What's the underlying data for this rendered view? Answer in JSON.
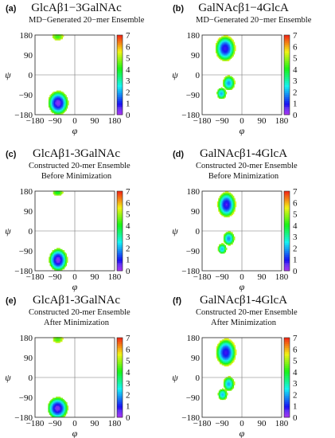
{
  "panels": [
    {
      "letter": "(a)",
      "title": "GlcAβ1−3GalNAc",
      "subtitle": [
        "MD−Generated 20−mer Ensemble"
      ]
    },
    {
      "letter": "(b)",
      "title": "GalNAcβ1−4GlcA",
      "subtitle": [
        "MD−Generated 20−mer Ensemble"
      ]
    },
    {
      "letter": "(c)",
      "title": "GlcAβ1-3GalNAc",
      "subtitle": [
        "Constructed 20-mer Ensemble",
        "Before Minimization"
      ]
    },
    {
      "letter": "(d)",
      "title": "GalNAcβ1-4GlcA",
      "subtitle": [
        "Constructed 20-mer Ensemble",
        "Before Minimization"
      ]
    },
    {
      "letter": "(e)",
      "title": "GlcAβ1-3GalNAc",
      "subtitle": [
        "Constructed 20-mer Ensemble",
        "After Minimization"
      ]
    },
    {
      "letter": "(f)",
      "title": "GalNAcβ1-4GlcA",
      "subtitle": [
        "Constructed 20-mer Ensemble",
        "After Minimization"
      ]
    }
  ],
  "chart_data": [
    {
      "type": "heatmap",
      "title": "GlcAβ1−3GalNAc",
      "xlabel": "φ",
      "ylabel": "ψ",
      "xlim": [
        -180,
        180
      ],
      "ylim": [
        -180,
        180
      ],
      "x_ticks": [
        "−180",
        "−90",
        "0",
        "90",
        "180"
      ],
      "y_ticks": [
        "−180",
        "−90",
        "0",
        "90",
        "180"
      ],
      "colorbar": {
        "min": 0,
        "max": 7,
        "ticks": [
          "0",
          "1",
          "2",
          "3",
          "4",
          "5",
          "6",
          "7"
        ]
      },
      "clusters": [
        {
          "phi": -78,
          "psi": -128,
          "sphi": 22,
          "spsi": 26,
          "peak": 0.3
        },
        {
          "phi": -80,
          "psi": 172,
          "sphi": 12,
          "spsi": 8,
          "peak": 4.0
        }
      ]
    },
    {
      "type": "heatmap",
      "title": "GalNAcβ1−4GlcA",
      "xlabel": "φ",
      "ylabel": "ψ",
      "xlim": [
        -180,
        180
      ],
      "ylim": [
        -180,
        180
      ],
      "x_ticks": [
        "−180",
        "−90",
        "0",
        "90",
        "180"
      ],
      "y_ticks": [
        "−180",
        "−90",
        "0",
        "90",
        "180"
      ],
      "colorbar": {
        "min": 0,
        "max": 7,
        "ticks": [
          "0",
          "1",
          "2",
          "3",
          "4",
          "5",
          "6",
          "7"
        ]
      },
      "clusters": [
        {
          "phi": -78,
          "psi": 118,
          "sphi": 22,
          "spsi": 28,
          "peak": 0.3
        },
        {
          "phi": -62,
          "psi": -38,
          "sphi": 13,
          "spsi": 16,
          "peak": 1.8
        },
        {
          "phi": -95,
          "psi": -85,
          "sphi": 10,
          "spsi": 12,
          "peak": 2.2
        }
      ]
    },
    {
      "type": "heatmap",
      "title": "GlcAβ1-3GalNAc",
      "xlabel": "φ",
      "ylabel": "ψ",
      "xlim": [
        -180,
        180
      ],
      "ylim": [
        -180,
        180
      ],
      "x_ticks": [
        "−180",
        "−90",
        "0",
        "90",
        "180"
      ],
      "y_ticks": [
        "180",
        "90",
        "0",
        "−90",
        "−180"
      ],
      "colorbar": {
        "min": 0,
        "max": 7,
        "ticks": [
          "0",
          "1",
          "2",
          "3",
          "4",
          "5",
          "6",
          "7"
        ]
      },
      "clusters": [
        {
          "phi": -78,
          "psi": -132,
          "sphi": 20,
          "spsi": 25,
          "peak": 0.4
        },
        {
          "phi": -80,
          "psi": 173,
          "sphi": 11,
          "spsi": 7,
          "peak": 3.8
        }
      ]
    },
    {
      "type": "heatmap",
      "title": "GalNAcβ1-4GlcA",
      "xlabel": "φ",
      "ylabel": "ψ",
      "xlim": [
        -180,
        180
      ],
      "ylim": [
        -180,
        180
      ],
      "x_ticks": [
        "−180",
        "−90",
        "0",
        "90",
        "180"
      ],
      "y_ticks": [
        "180",
        "90",
        "0",
        "−90",
        "−180"
      ],
      "colorbar": {
        "min": 0,
        "max": 7,
        "ticks": [
          "0",
          "1",
          "2",
          "3",
          "4",
          "5",
          "6",
          "7"
        ]
      },
      "clusters": [
        {
          "phi": -72,
          "psi": 118,
          "sphi": 20,
          "spsi": 28,
          "peak": 0.3
        },
        {
          "phi": -62,
          "psi": -35,
          "sphi": 12,
          "spsi": 15,
          "peak": 1.8
        },
        {
          "phi": -92,
          "psi": -82,
          "sphi": 9,
          "spsi": 11,
          "peak": 2.3
        }
      ]
    },
    {
      "type": "heatmap",
      "title": "GlcAβ1-3GalNAc",
      "xlabel": "φ",
      "ylabel": "ψ",
      "xlim": [
        -180,
        180
      ],
      "ylim": [
        -180,
        180
      ],
      "x_ticks": [
        "−180",
        "−90",
        "0",
        "90",
        "180"
      ],
      "y_ticks": [
        "180",
        "90",
        "0",
        "−90",
        "−180"
      ],
      "colorbar": {
        "min": 0,
        "max": 7,
        "ticks": [
          "0",
          "1",
          "2",
          "3",
          "4",
          "5",
          "6",
          "7"
        ]
      },
      "clusters": [
        {
          "phi": -80,
          "psi": -140,
          "sphi": 22,
          "spsi": 24,
          "peak": 0.5
        },
        {
          "phi": -80,
          "psi": 172,
          "sphi": 11,
          "spsi": 8,
          "peak": 4.0
        }
      ]
    },
    {
      "type": "heatmap",
      "title": "GalNAcβ1-4GlcA",
      "xlabel": "φ",
      "ylabel": "ψ",
      "xlim": [
        -180,
        180
      ],
      "ylim": [
        -180,
        180
      ],
      "x_ticks": [
        "−180",
        "−90",
        "0",
        "90",
        "180"
      ],
      "y_ticks": [
        "180",
        "90",
        "0",
        "−90",
        "−180"
      ],
      "colorbar": {
        "min": 0,
        "max": 7,
        "ticks": [
          "0",
          "1",
          "2",
          "3",
          "4",
          "5",
          "6",
          "7"
        ]
      },
      "clusters": [
        {
          "phi": -75,
          "psi": 112,
          "sphi": 22,
          "spsi": 30,
          "peak": 0.3
        },
        {
          "phi": -62,
          "psi": -30,
          "sphi": 12,
          "spsi": 16,
          "peak": 1.9
        },
        {
          "phi": -90,
          "psi": -78,
          "sphi": 10,
          "spsi": 12,
          "peak": 2.2
        }
      ]
    }
  ]
}
